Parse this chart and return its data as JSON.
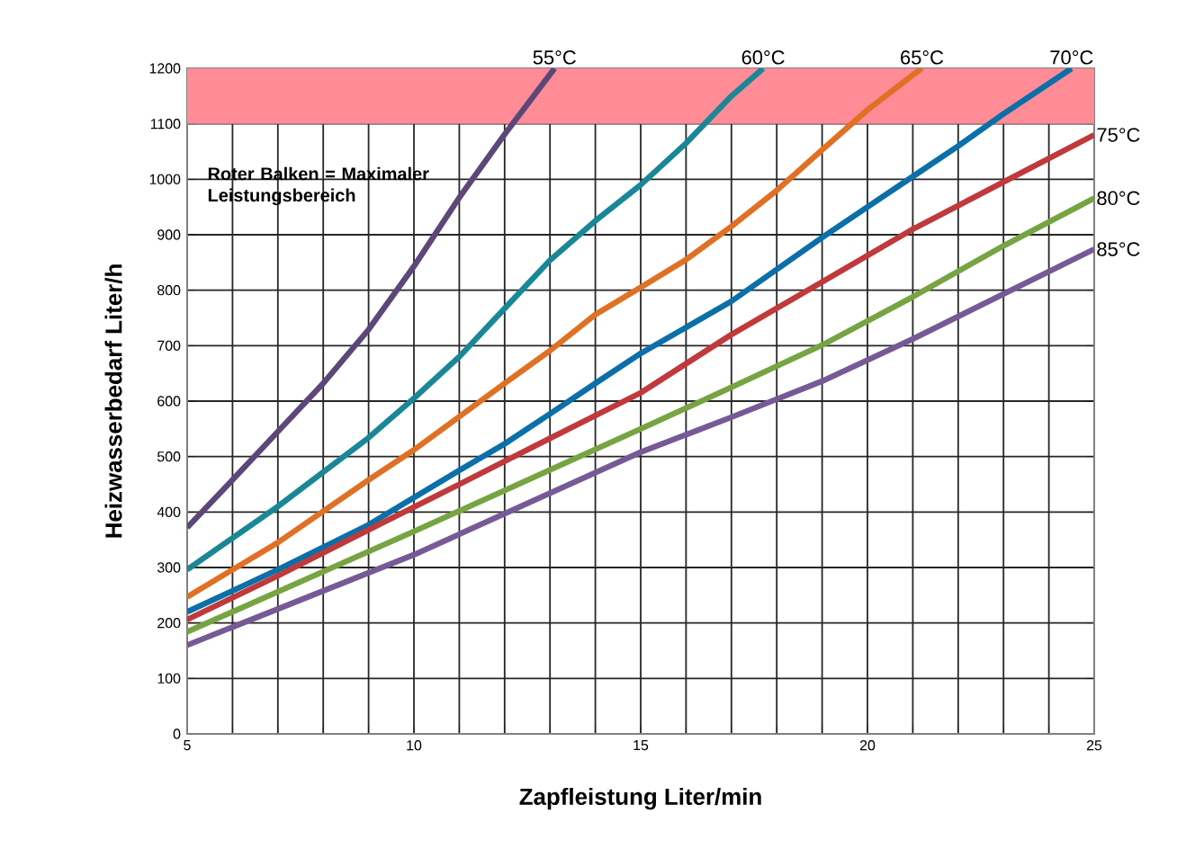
{
  "chart_data": {
    "type": "line",
    "xlabel": "Zapfleistung Liter/min",
    "ylabel": "Heizwasserbedarf Liter/h",
    "xlim": [
      5,
      25
    ],
    "ylim": [
      0,
      1200
    ],
    "xticks": [
      5,
      {
        "value": 6,
        "label": null
      },
      {
        "value": 7,
        "label": null
      },
      {
        "value": 8,
        "label": null
      },
      {
        "value": 9,
        "label": null
      },
      10,
      {
        "value": 11,
        "label": null
      },
      {
        "value": 12,
        "label": null
      },
      {
        "value": 13,
        "label": null
      },
      {
        "value": 14,
        "label": null
      },
      15,
      {
        "value": 16,
        "label": null
      },
      {
        "value": 17,
        "label": null
      },
      {
        "value": 18,
        "label": null
      },
      {
        "value": 19,
        "label": null
      },
      20,
      {
        "value": 21,
        "label": null
      },
      {
        "value": 22,
        "label": null
      },
      {
        "value": 23,
        "label": null
      },
      {
        "value": 24,
        "label": null
      },
      25
    ],
    "yticks": [
      0,
      100,
      200,
      300,
      400,
      500,
      600,
      700,
      800,
      900,
      1000,
      1100,
      1200
    ],
    "grid": true,
    "marker": "none",
    "line_style": "solid",
    "bands": [
      {
        "axis": "y",
        "from": 1100,
        "to": 1200,
        "color": "#ff8c96"
      }
    ],
    "annotations": [
      "Roter Balken = Maximaler Leistungsbereich"
    ],
    "series": [
      {
        "name": "55°C",
        "color": "#5c4779",
        "x": [
          5,
          6,
          7,
          8,
          9,
          10,
          11,
          12,
          13.1
        ],
        "values": [
          372,
          458,
          545,
          632,
          729,
          843,
          967,
          1081,
          1200
        ]
      },
      {
        "name": "60°C",
        "color": "#1a8796",
        "x": [
          5,
          7,
          9,
          10,
          11,
          12,
          13,
          14,
          15,
          16,
          17,
          17.7
        ],
        "values": [
          296,
          410,
          534,
          605,
          680,
          767,
          854,
          925,
          990,
          1065,
          1150,
          1200
        ]
      },
      {
        "name": "65°C",
        "color": "#e07024",
        "x": [
          5,
          7,
          9,
          10,
          11,
          12,
          13,
          14,
          15,
          16,
          17,
          18,
          19,
          20,
          21,
          21.2
        ],
        "values": [
          247,
          345,
          458,
          512,
          572,
          632,
          691,
          756,
          805,
          855,
          915,
          980,
          1053,
          1125,
          1188,
          1200
        ]
      },
      {
        "name": "70°C",
        "color": "#0b6fa8",
        "x": [
          5,
          7,
          9,
          10,
          11,
          12,
          13,
          14,
          15,
          17,
          19,
          20,
          21,
          22,
          23,
          24.5
        ],
        "values": [
          220,
          296,
          377,
          426,
          475,
          523,
          577,
          632,
          686,
          780,
          895,
          950,
          1005,
          1060,
          1118,
          1200
        ]
      },
      {
        "name": "75°C",
        "color": "#c0393b",
        "x": [
          5,
          7,
          9,
          11,
          13,
          15,
          17,
          19,
          21,
          23,
          25
        ],
        "values": [
          206,
          285,
          368,
          450,
          533,
          615,
          720,
          815,
          910,
          995,
          1080
        ]
      },
      {
        "name": "80°C",
        "color": "#77a443",
        "x": [
          5,
          10,
          15,
          17,
          19,
          21,
          23,
          25
        ],
        "values": [
          184,
          365,
          550,
          625,
          701,
          788,
          880,
          966
        ]
      },
      {
        "name": "85°C",
        "color": "#765a96",
        "x": [
          5,
          10,
          15,
          17,
          19,
          21,
          23,
          25
        ],
        "values": [
          160,
          323,
          508,
          571,
          636,
          712,
          793,
          874
        ]
      }
    ]
  }
}
